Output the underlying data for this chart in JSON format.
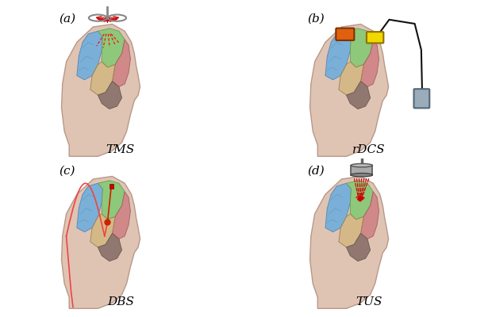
{
  "background_color": "#ffffff",
  "skin_color": "#dfc4b4",
  "skin_edge_color": "#b89888",
  "brain_blue": "#7ab0d8",
  "brain_green": "#8ec87a",
  "brain_red": "#d08888",
  "brain_tan": "#d4b888",
  "brain_dark": "#907870",
  "brain_outline": "#888888",
  "label_fontsize": 11,
  "title_fontsize": 11,
  "panels": [
    {
      "label": "(a)",
      "title": "TMS"
    },
    {
      "label": "(b)",
      "title": "rDCS"
    },
    {
      "label": "(c)",
      "title": "DBS"
    },
    {
      "label": "(d)",
      "title": "TUS"
    }
  ]
}
